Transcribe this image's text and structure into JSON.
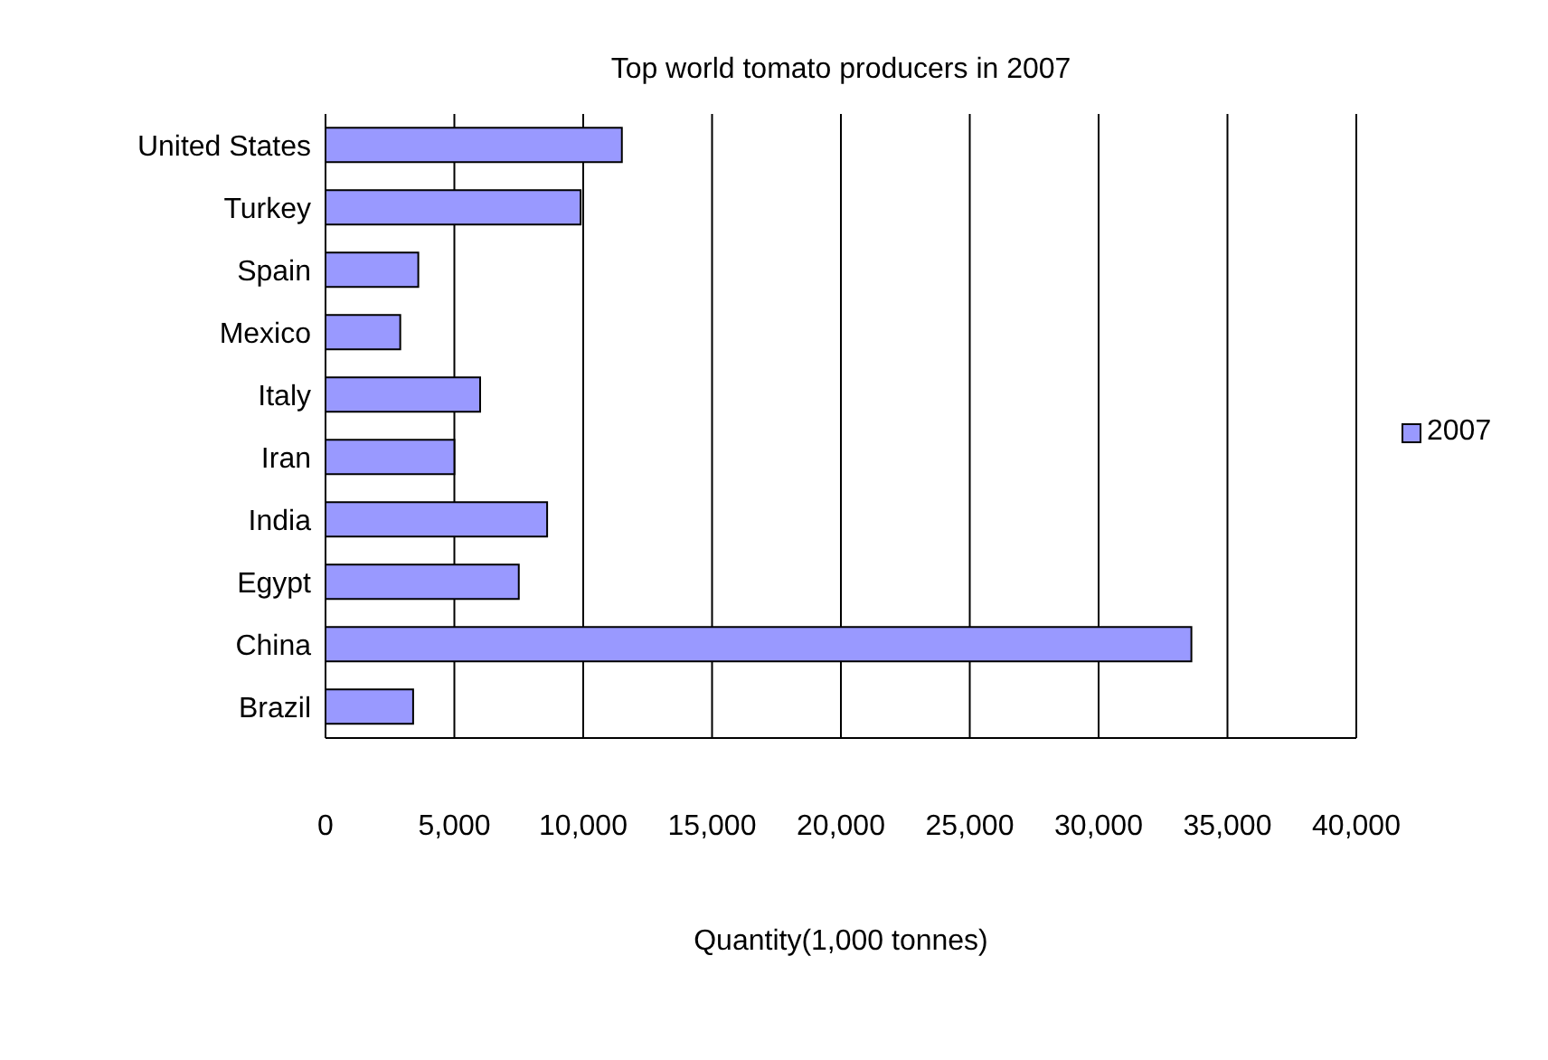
{
  "chart_data": {
    "type": "bar",
    "orientation": "horizontal",
    "title": "Top world tomato producers in 2007",
    "xlabel": "Quantity(1,000 tonnes)",
    "categories": [
      "United States",
      "Turkey",
      "Spain",
      "Mexico",
      "Italy",
      "Iran",
      "India",
      "Egypt",
      "China",
      "Brazil"
    ],
    "series": [
      {
        "name": "2007",
        "color": "#9999ff",
        "values": [
          11500,
          9900,
          3600,
          2900,
          6000,
          5000,
          8600,
          7500,
          33600,
          3400
        ]
      }
    ],
    "xlim": [
      0,
      40000
    ],
    "xticks": [
      0,
      {
        "value": 5000,
        "label": "5,000"
      },
      {
        "value": 10000,
        "label": "10,000"
      },
      {
        "value": 15000,
        "label": "15,000"
      },
      {
        "value": 20000,
        "label": "20,000"
      },
      {
        "value": 25000,
        "label": "25,000"
      },
      {
        "value": 30000,
        "label": "30,000"
      },
      {
        "value": 35000,
        "label": "35,000"
      },
      {
        "value": 40000,
        "label": "40,000"
      }
    ],
    "grid": "x",
    "legend": "right"
  }
}
